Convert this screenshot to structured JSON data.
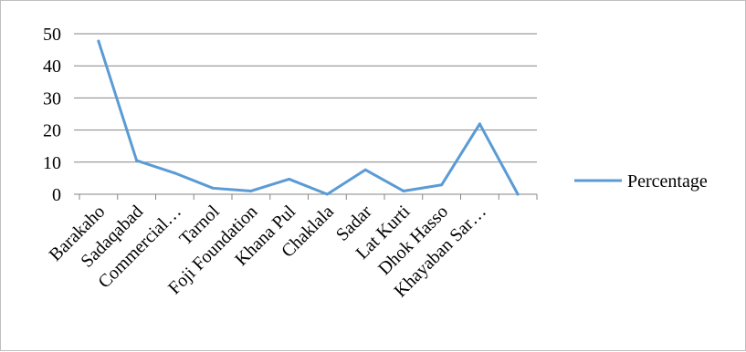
{
  "chart_data": {
    "type": "line",
    "title": "",
    "xlabel": "",
    "ylabel": "",
    "categories": [
      "Barakaho",
      "Sadaqabad",
      "Commercial…",
      "Tarnol",
      "Foji Foundation",
      "Khana Pul",
      "Chaklala",
      "Sadar",
      "Lat Kurti",
      "Dhok Hasso",
      "Khayaban Sar…",
      ""
    ],
    "series": [
      {
        "name": "Percentage",
        "color": "#5b9bd5",
        "values": [
          47.7,
          10.5,
          6.6,
          1.9,
          1.0,
          4.7,
          0.0,
          7.6,
          1.0,
          2.9,
          21.9,
          0.0
        ]
      }
    ],
    "ylim": [
      0,
      50
    ],
    "yticks": [
      0,
      10,
      20,
      30,
      40,
      50
    ],
    "grid": true,
    "legend": "right",
    "colors": {
      "line": "#5b9bd5",
      "grid": "#868686",
      "axis": "#868686",
      "border": "#bfbfbf"
    }
  }
}
